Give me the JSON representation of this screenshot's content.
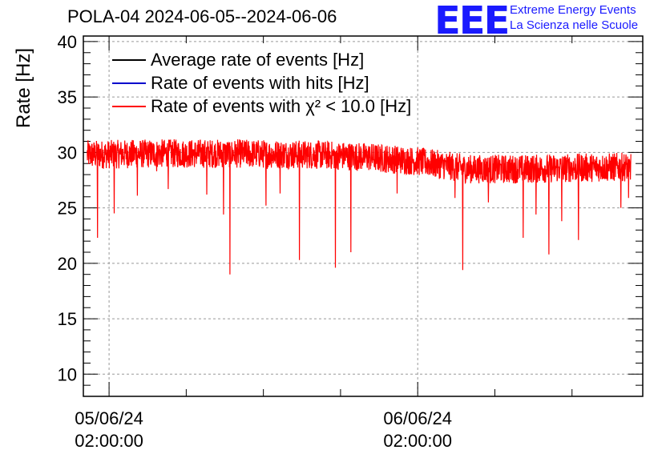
{
  "header": {
    "title": "POLA-04 2024-06-05--2024-06-06",
    "logo": "EEE",
    "logo_line1": "Extreme Energy Events",
    "logo_line2": "La Scienza nelle Scuole"
  },
  "legend": [
    {
      "label": "Average rate of events [Hz]",
      "color": "#000000"
    },
    {
      "label": "Rate of events with hits [Hz]",
      "color": "#0000cc"
    },
    {
      "label": "Rate of events with χ² < 10.0 [Hz]",
      "color": "#ff0000"
    }
  ],
  "chart_data": {
    "type": "line",
    "title": "POLA-04 2024-06-05--2024-06-06",
    "ylabel": "Rate [Hz]",
    "xlabel": "",
    "ylim": [
      8,
      40.5
    ],
    "yticks": [
      10,
      15,
      20,
      25,
      30,
      35,
      40
    ],
    "x_axis": "time (hours relative to 05/06/24 00:00)",
    "xlim_hours": [
      0,
      43.5
    ],
    "xticks": [
      {
        "hour": 2,
        "date": "05/06/24",
        "time": "02:00:00"
      },
      {
        "hour": 26,
        "date": "06/06/24",
        "time": "02:00:00"
      }
    ],
    "grid": true,
    "legend_position": "top-left",
    "series": [
      {
        "name": "Rate of events with χ² < 10.0 [Hz]",
        "color": "#ff0000",
        "x_start_hour": 0.3,
        "x_end_hour": 42.6,
        "baseline_points": [
          [
            0.3,
            29.8
          ],
          [
            6,
            29.9
          ],
          [
            12,
            29.9
          ],
          [
            18,
            29.8
          ],
          [
            22,
            29.6
          ],
          [
            26,
            29.2
          ],
          [
            30,
            28.5
          ],
          [
            34,
            28.5
          ],
          [
            38,
            28.6
          ],
          [
            42.6,
            28.7
          ]
        ],
        "noise_amplitude": 1.3,
        "dips": [
          [
            1.1,
            22.3
          ],
          [
            2.4,
            24.5
          ],
          [
            4.2,
            26.1
          ],
          [
            5.7,
            28.3
          ],
          [
            6.6,
            26.7
          ],
          [
            9.6,
            26.2
          ],
          [
            10.9,
            24.4
          ],
          [
            11.4,
            19.0
          ],
          [
            14.2,
            25.2
          ],
          [
            15.3,
            26.3
          ],
          [
            16.8,
            20.3
          ],
          [
            19.6,
            19.6
          ],
          [
            20.8,
            21.0
          ],
          [
            24.4,
            26.3
          ],
          [
            28.9,
            25.9
          ],
          [
            29.5,
            19.4
          ],
          [
            31.5,
            25.5
          ],
          [
            34.2,
            22.3
          ],
          [
            35.2,
            24.4
          ],
          [
            36.2,
            20.8
          ],
          [
            37.2,
            23.8
          ],
          [
            38.5,
            22.1
          ],
          [
            41.8,
            25.0
          ],
          [
            42.4,
            25.9
          ]
        ]
      }
    ]
  }
}
